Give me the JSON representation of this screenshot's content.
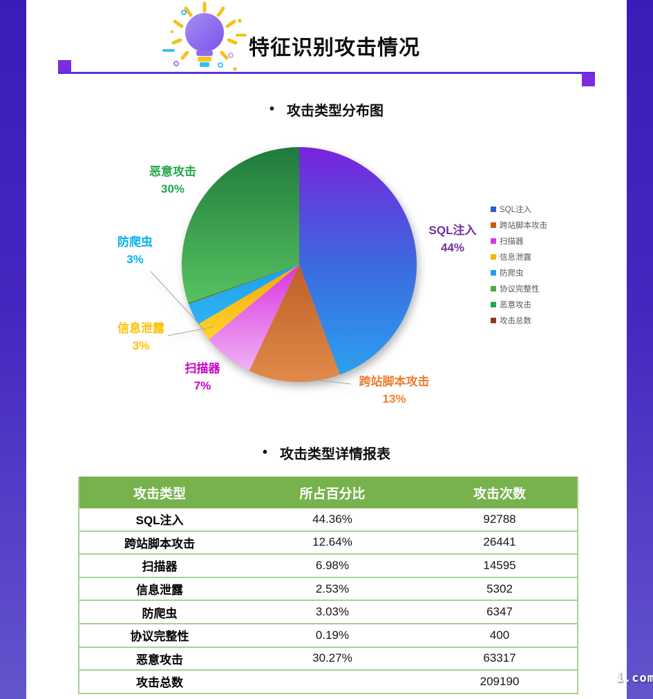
{
  "page": {
    "title": "特征识别攻击情况",
    "watermark": "i.com"
  },
  "sections": {
    "bullet": "•",
    "pie_title": "攻击类型分布图",
    "table_title": "攻击类型详情报表"
  },
  "chart_data": {
    "type": "pie",
    "title": "攻击类型分布图",
    "start_angle_deg": 0,
    "direction": "clockwise",
    "legend_position": "right",
    "slices": [
      {
        "name": "SQL注入",
        "value": 44.36,
        "pct_label": "44%",
        "colors": [
          "#7a22dc",
          "#3d68df",
          "#2ba0ee"
        ],
        "label_color": "#7030a0"
      },
      {
        "name": "跨站脚本攻击",
        "value": 12.64,
        "pct_label": "13%",
        "colors": [
          "#be5f28",
          "#e08a4a"
        ],
        "label_color": "#ed7d31"
      },
      {
        "name": "扫描器",
        "value": 6.98,
        "pct_label": "7%",
        "colors": [
          "#d935de",
          "#f0b2f5"
        ],
        "label_color": "#cc00cc"
      },
      {
        "name": "信息泄露",
        "value": 2.53,
        "pct_label": "3%",
        "colors": [
          "#f2a70a",
          "#ffd42a"
        ],
        "label_color": "#ffc000"
      },
      {
        "name": "防爬虫",
        "value": 3.03,
        "pct_label": "3%",
        "colors": [
          "#1b9fe8",
          "#33b3f5"
        ],
        "label_color": "#00b0f0"
      },
      {
        "name": "协议完整性",
        "value": 0.19,
        "pct_label": "",
        "colors": [
          "#44651f",
          "#55862c"
        ],
        "label_color": "#70ad47"
      },
      {
        "name": "恶意攻击",
        "value": 30.27,
        "pct_label": "30%",
        "colors": [
          "#1f7a3c",
          "#57c260"
        ],
        "label_color": "#21a84a"
      }
    ],
    "legend": [
      {
        "label": "SQL注入",
        "color": "#2e5fd0"
      },
      {
        "label": "跨站脚本攻击",
        "color": "#c55a11"
      },
      {
        "label": "扫描器",
        "color": "#d53dd0"
      },
      {
        "label": "信息泄露",
        "color": "#f2b800"
      },
      {
        "label": "防爬虫",
        "color": "#1f9fe8"
      },
      {
        "label": "协议完整性",
        "color": "#55a546"
      },
      {
        "label": "恶意攻击",
        "color": "#1fa84d"
      },
      {
        "label": "攻击总数",
        "color": "#8b3d20"
      }
    ],
    "leader_line_color": "#a6a6a6"
  },
  "table": {
    "title": "攻击类型详情报表",
    "headers": [
      "攻击类型",
      "所占百分比",
      "攻击次数"
    ],
    "rows": [
      [
        "SQL注入",
        "44.36%",
        "92788"
      ],
      [
        "跨站脚本攻击",
        "12.64%",
        "26441"
      ],
      [
        "扫描器",
        "6.98%",
        "14595"
      ],
      [
        "信息泄露",
        "2.53%",
        "5302"
      ],
      [
        "防爬虫",
        "3.03%",
        "6347"
      ],
      [
        "协议完整性",
        "0.19%",
        "400"
      ],
      [
        "恶意攻击",
        "30.27%",
        "63317"
      ],
      [
        "攻击总数",
        "",
        "209190"
      ]
    ],
    "header_bg": "#77b24d",
    "border_color": "#a9d08e"
  }
}
